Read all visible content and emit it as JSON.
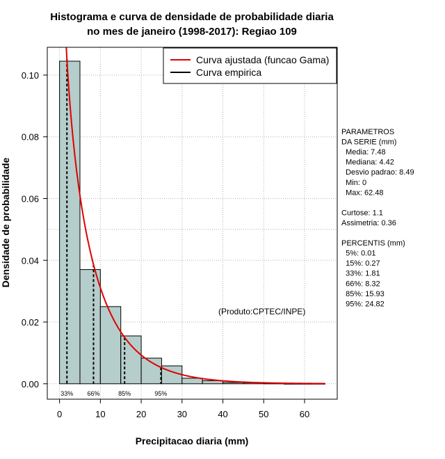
{
  "chart_data": {
    "type": "bar",
    "title_line1": "Histograma e curva de densidade de probabilidade diaria",
    "title_line2": "no mes de janeiro (1998-2017): Regiao 109",
    "xlabel": "Precipitacao diaria (mm)",
    "ylabel": "Densidade de probabilidade",
    "xlim": [
      -3,
      68
    ],
    "ylim": [
      -0.005,
      0.109
    ],
    "x_ticks": [
      0,
      10,
      20,
      30,
      40,
      50,
      60
    ],
    "y_ticks": [
      0.0,
      0.02,
      0.04,
      0.06,
      0.08,
      0.1
    ],
    "y_tick_labels": [
      "0.00",
      "0.02",
      "0.04",
      "0.06",
      "0.08",
      "0.10"
    ],
    "bin_width": 5,
    "bins": [
      {
        "x0": 0,
        "x1": 5,
        "density": 0.1045
      },
      {
        "x0": 5,
        "x1": 10,
        "density": 0.037
      },
      {
        "x0": 10,
        "x1": 15,
        "density": 0.025
      },
      {
        "x0": 15,
        "x1": 20,
        "density": 0.0155
      },
      {
        "x0": 20,
        "x1": 25,
        "density": 0.0083
      },
      {
        "x0": 25,
        "x1": 30,
        "density": 0.0058
      },
      {
        "x0": 30,
        "x1": 35,
        "density": 0.0018
      },
      {
        "x0": 35,
        "x1": 40,
        "density": 0.001
      },
      {
        "x0": 40,
        "x1": 45,
        "density": 0.0004
      },
      {
        "x0": 45,
        "x1": 50,
        "density": 0.0003
      },
      {
        "x0": 50,
        "x1": 55,
        "density": 0.0002
      },
      {
        "x0": 55,
        "x1": 60,
        "density": 0.0001
      },
      {
        "x0": 60,
        "x1": 65,
        "density": 0.0001
      }
    ],
    "gamma_fit": {
      "shape": 0.8,
      "scale": 9.35
    },
    "percentile_markers": [
      {
        "label": "33%",
        "x": 1.81
      },
      {
        "label": "66%",
        "x": 8.32
      },
      {
        "label": "85%",
        "x": 15.93
      },
      {
        "label": "95%",
        "x": 24.82
      }
    ],
    "legend": [
      {
        "label": "Curva ajustada (funcao Gama)",
        "color": "#e00000"
      },
      {
        "label": "Curva empirica",
        "color": "#000000"
      }
    ],
    "legend_position": "top-right",
    "grid": true,
    "bar_color": "#b5cdcb",
    "annotation": "(Produto:CPTEC/INPE)"
  },
  "stats_panel": {
    "lines": [
      "PARAMETROS",
      "DA SERIE (mm)",
      "  Media: 7.48",
      "  Mediana: 4.42",
      "  Desvio padrao: 8.49",
      "  Min: 0",
      "  Max: 62.48",
      "",
      "Curtose: 1.1",
      "Assimetria: 0.36",
      "",
      "PERCENTIS (mm)",
      "  5%: 0.01",
      "  15%: 0.27",
      "  33%: 1.81",
      "  66%: 8.32",
      "  85%: 15.93",
      "  95%: 24.82"
    ]
  }
}
